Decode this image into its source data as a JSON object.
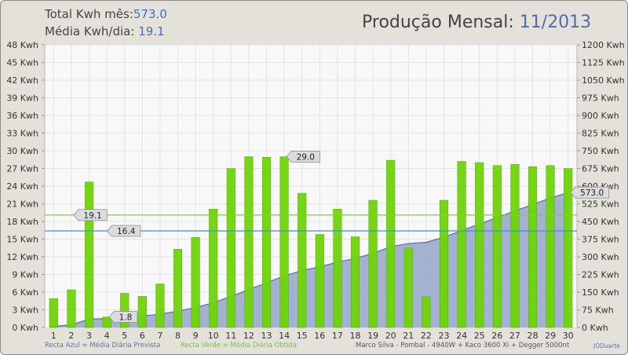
{
  "header": {
    "total_label": "Total Kwh mês:",
    "total_value": "573.0",
    "avg_label": "Média Kwh/dia:",
    "avg_value": "19.1",
    "title_label": "Produção Mensal:",
    "title_value": "11/2013"
  },
  "footer": {
    "blue_note": "Recta Azul = Média Diária Prevista",
    "green_note": "Recta Verde = Média Diária Obtida",
    "system": "Marco Silva - Pombal - 4940W + Kaco 3600 Xi + Degger 5000nt",
    "author": "JODuarte"
  },
  "colors": {
    "bar": "#6fd40a",
    "bar_stroke": "#58a808",
    "area": "#9aa9cc",
    "area_line": "#5a6fa0",
    "expected_line": "#4a86e8",
    "obtained_line": "#7fd320",
    "plot_bg": "#f8f8f8",
    "grid": "#e3e3e3"
  },
  "chart_data": {
    "type": "bar",
    "categories": [
      "1",
      "2",
      "3",
      "4",
      "5",
      "6",
      "7",
      "8",
      "9",
      "10",
      "11",
      "12",
      "13",
      "14",
      "15",
      "16",
      "17",
      "18",
      "19",
      "20",
      "21",
      "22",
      "23",
      "24",
      "25",
      "26",
      "27",
      "28",
      "29",
      "30"
    ],
    "series": [
      {
        "axis": "left",
        "values": [
          4.9,
          6.4,
          24.7,
          1.8,
          5.8,
          5.3,
          7.4,
          13.3,
          15.3,
          20.1,
          27.0,
          29.0,
          28.9,
          29.0,
          22.8,
          15.8,
          20.1,
          15.4,
          21.6,
          28.4,
          13.5,
          5.2,
          21.6,
          28.2,
          28.0,
          27.5,
          27.7,
          27.3,
          27.5,
          27.0
        ]
      },
      {
        "type": "area",
        "axis": "right",
        "values": [
          4.9,
          11.3,
          36.0,
          37.8,
          43.6,
          48.9,
          56.3,
          69.6,
          84.9,
          105.0,
          132.0,
          161.0,
          189.9,
          218.9,
          241.7,
          257.5,
          277.6,
          293.0,
          314.6,
          343.0,
          356.5,
          361.7,
          383.3,
          411.5,
          439.5,
          467.0,
          494.7,
          522.0,
          549.5,
          573.0
        ]
      }
    ],
    "reference_lines": [
      {
        "label": "19.1",
        "value": 19.1,
        "color": "#7fd320"
      },
      {
        "label": "16.4",
        "value": 16.4,
        "color": "#4a86e8"
      }
    ],
    "annotations": [
      {
        "label": "29.0",
        "x": "14",
        "y": 29.0
      },
      {
        "label": "1.8",
        "x": "4",
        "y": 1.8
      },
      {
        "label": "573.0",
        "x": "30",
        "y": 573.0,
        "axis": "right"
      }
    ],
    "yticks_left": [
      "0 Kwh",
      "3 Kwh",
      "6 Kwh",
      "9 Kwh",
      "12 Kwh",
      "15 Kwh",
      "18 Kwh",
      "21 Kwh",
      "24 Kwh",
      "27 Kwh",
      "30 Kwh",
      "33 Kwh",
      "36 Kwh",
      "39 Kwh",
      "42 Kwh",
      "45 Kwh",
      "48 Kwh"
    ],
    "yticks_right": [
      "0 Kwh",
      "75 Kwh",
      "150 Kwh",
      "225 Kwh",
      "300 Kwh",
      "375 Kwh",
      "450 Kwh",
      "525 Kwh",
      "600 Kwh",
      "675 Kwh",
      "750 Kwh",
      "825 Kwh",
      "900 Kwh",
      "975 Kwh",
      "1050 Kwh",
      "1125 Kwh",
      "1200 Kwh"
    ],
    "ylim_left": [
      0,
      48
    ],
    "ylim_right": [
      0,
      1200
    ],
    "grid": true
  }
}
